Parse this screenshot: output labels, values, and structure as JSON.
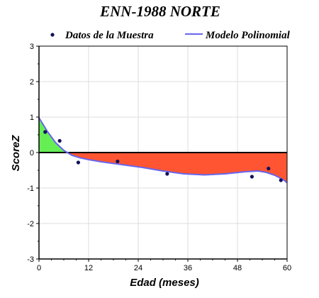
{
  "colors": {
    "above": "#66ee55",
    "below": "#ff5533",
    "curve": "#6666ee",
    "points": "#11115a",
    "zero_line": "#000000",
    "grid": "#dddddd"
  },
  "chart_data": {
    "type": "scatter",
    "title": "ENN-1988 NORTE",
    "xlabel": "Edad (meses)",
    "ylabel": "ScoreZ",
    "xlim": [
      0,
      60
    ],
    "ylim": [
      -3,
      3
    ],
    "x_ticks": [
      0,
      12,
      24,
      36,
      48,
      60
    ],
    "y_ticks": [
      -3,
      -2,
      -1,
      0,
      1,
      2,
      3
    ],
    "grid": true,
    "legend_position": "top",
    "series": [
      {
        "name": "Datos de la Muestra",
        "kind": "scatter",
        "x": [
          1.5,
          5,
          9.5,
          19,
          31,
          51.5,
          55.5,
          58.5
        ],
        "y": [
          0.58,
          0.33,
          -0.28,
          -0.25,
          -0.6,
          -0.68,
          -0.45,
          -0.78
        ]
      },
      {
        "name": "Modelo Polinomial",
        "kind": "line",
        "x": [
          0,
          2,
          4,
          6,
          8,
          10,
          12,
          15,
          20,
          25,
          30,
          35,
          40,
          45,
          50,
          53,
          55,
          57,
          59,
          60
        ],
        "y": [
          0.98,
          0.6,
          0.28,
          0.06,
          -0.08,
          -0.15,
          -0.2,
          -0.26,
          -0.34,
          -0.42,
          -0.52,
          -0.6,
          -0.63,
          -0.6,
          -0.54,
          -0.52,
          -0.56,
          -0.64,
          -0.76,
          -0.85
        ]
      }
    ]
  }
}
